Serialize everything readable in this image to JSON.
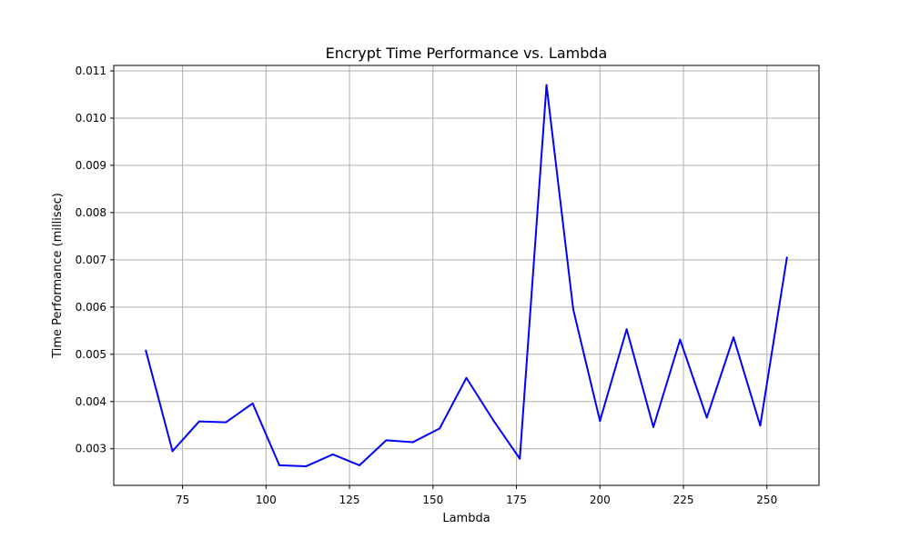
{
  "chart_data": {
    "type": "line",
    "title": "Encrypt Time Performance vs. Lambda",
    "xlabel": "Lambda",
    "ylabel": "Time Performance (millisec)",
    "xlim": [
      54.4,
      265.6
    ],
    "ylim": [
      0.002225,
      0.011115
    ],
    "xticks": [
      75,
      100,
      125,
      150,
      175,
      200,
      225,
      250
    ],
    "xtick_labels": [
      "75",
      "100",
      "125",
      "150",
      "175",
      "200",
      "225",
      "250"
    ],
    "yticks": [
      0.003,
      0.004,
      0.005,
      0.006,
      0.007,
      0.008,
      0.009,
      0.01,
      0.011
    ],
    "ytick_labels": [
      "0.003",
      "0.004",
      "0.005",
      "0.006",
      "0.007",
      "0.008",
      "0.009",
      "0.010",
      "0.011"
    ],
    "grid": true,
    "series": [
      {
        "color": "#0000ff",
        "x": [
          64,
          72,
          80,
          88,
          96,
          104,
          112,
          120,
          128,
          136,
          144,
          152,
          160,
          168,
          176,
          184,
          192,
          200,
          208,
          216,
          224,
          232,
          240,
          248,
          256
        ],
        "y": [
          0.00508,
          0.00295,
          0.00358,
          0.00356,
          0.00396,
          0.00265,
          0.00263,
          0.00288,
          0.00265,
          0.00318,
          0.00314,
          0.00343,
          0.0045,
          0.00361,
          0.00279,
          0.0107,
          0.00595,
          0.00359,
          0.00553,
          0.00346,
          0.00531,
          0.00366,
          0.00536,
          0.00349,
          0.00705
        ]
      }
    ]
  }
}
